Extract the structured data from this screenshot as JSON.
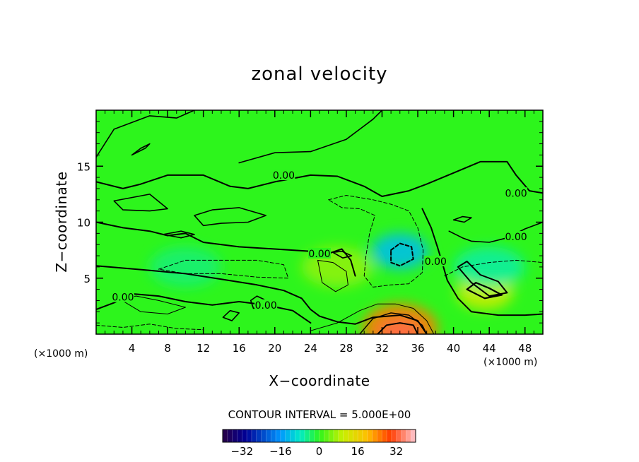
{
  "chart_data": {
    "type": "heatmap",
    "title": "zonal velocity",
    "xlabel": "X−coordinate",
    "ylabel": "Z−coordinate",
    "x_unit_left": "(×1000 m)",
    "x_unit_right": "(×1000 m)",
    "xlim": [
      0,
      50
    ],
    "ylim": [
      0,
      20
    ],
    "x_ticks": [
      4,
      8,
      12,
      16,
      20,
      24,
      28,
      32,
      36,
      40,
      44,
      48
    ],
    "y_ticks": [
      5,
      10,
      15
    ],
    "contour_interval_text": "CONTOUR INTERVAL = 5.000E+00",
    "contour_interval": 5,
    "zero_contour_label": "0.00",
    "zero_label_positions": [
      {
        "x": 21,
        "y": 14.2
      },
      {
        "x": 47,
        "y": 12.6
      },
      {
        "x": 47,
        "y": 8.7
      },
      {
        "x": 25,
        "y": 7.2
      },
      {
        "x": 38,
        "y": 6.5
      },
      {
        "x": 3,
        "y": 3.3
      },
      {
        "x": 19,
        "y": 2.6
      }
    ],
    "colorbar": {
      "range": [
        -40,
        40
      ],
      "tick_values": [
        -32,
        -16,
        0,
        16,
        32
      ],
      "tick_labels": [
        "−32",
        "−16",
        "0",
        "16",
        "32"
      ]
    },
    "field_features": [
      {
        "kind": "positive maximum",
        "x": 34,
        "y": 0.5,
        "value": 25
      },
      {
        "kind": "positive core",
        "x": 43.5,
        "y": 3.8,
        "value": 10
      },
      {
        "kind": "positive core",
        "x": 27,
        "y": 6,
        "value": 6
      },
      {
        "kind": "negative core",
        "x": 34,
        "y": 7.4,
        "value": -12
      },
      {
        "kind": "negative region",
        "x": 10,
        "y": 6,
        "value": -4
      },
      {
        "kind": "negative region",
        "x": 44,
        "y": 6,
        "value": -6
      }
    ]
  }
}
